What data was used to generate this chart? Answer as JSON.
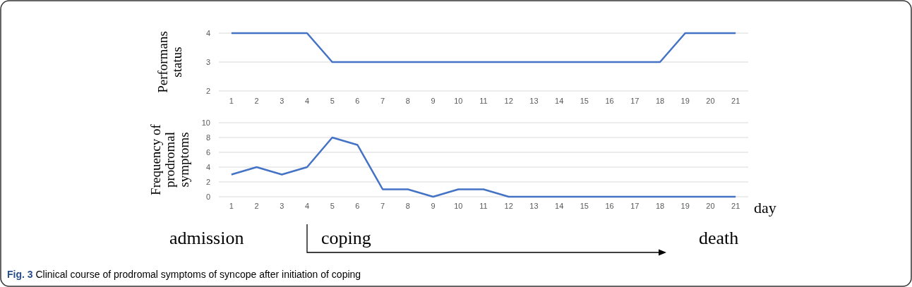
{
  "chart_data": [
    {
      "type": "line",
      "ylabel": "Performans status",
      "x": [
        1,
        2,
        3,
        4,
        5,
        6,
        7,
        8,
        9,
        10,
        11,
        12,
        13,
        14,
        15,
        16,
        17,
        18,
        19,
        20,
        21
      ],
      "xlim": [
        0.5,
        21.5
      ],
      "xticks": [
        1,
        2,
        3,
        4,
        5,
        6,
        7,
        8,
        9,
        10,
        11,
        12,
        13,
        14,
        15,
        16,
        17,
        18,
        19,
        20,
        21
      ],
      "ylim": [
        2,
        4
      ],
      "yticks": [
        2,
        3,
        4
      ],
      "grid": "y",
      "marker": "none",
      "series": [
        {
          "color": "#4472c4",
          "values": [
            4,
            4,
            4,
            4,
            3,
            3,
            3,
            3,
            3,
            3,
            3,
            3,
            3,
            3,
            3,
            3,
            3,
            3,
            4,
            4,
            4
          ]
        }
      ]
    },
    {
      "type": "line",
      "ylabel": "Frequency of prodromal symptoms",
      "xlabel": "day",
      "x": [
        1,
        2,
        3,
        4,
        5,
        6,
        7,
        8,
        9,
        10,
        11,
        12,
        13,
        14,
        15,
        16,
        17,
        18,
        19,
        20,
        21
      ],
      "xlim": [
        0.5,
        21.5
      ],
      "xticks": [
        1,
        2,
        3,
        4,
        5,
        6,
        7,
        8,
        9,
        10,
        11,
        12,
        13,
        14,
        15,
        16,
        17,
        18,
        19,
        20,
        21
      ],
      "ylim": [
        0,
        10
      ],
      "yticks": [
        0,
        2,
        4,
        6,
        8,
        10
      ],
      "grid": "y",
      "marker": "none",
      "series": [
        {
          "color": "#4472c4",
          "values": [
            3,
            4,
            3,
            4,
            8,
            7,
            1,
            1,
            0,
            1,
            1,
            0,
            0,
            0,
            0,
            0,
            0,
            0,
            0,
            0,
            0
          ]
        }
      ],
      "annotations": [
        "admission",
        "coping",
        "death",
        "Fig. 3 Clinical course of prodromal symptoms of syncope after initiation of coping"
      ]
    }
  ]
}
